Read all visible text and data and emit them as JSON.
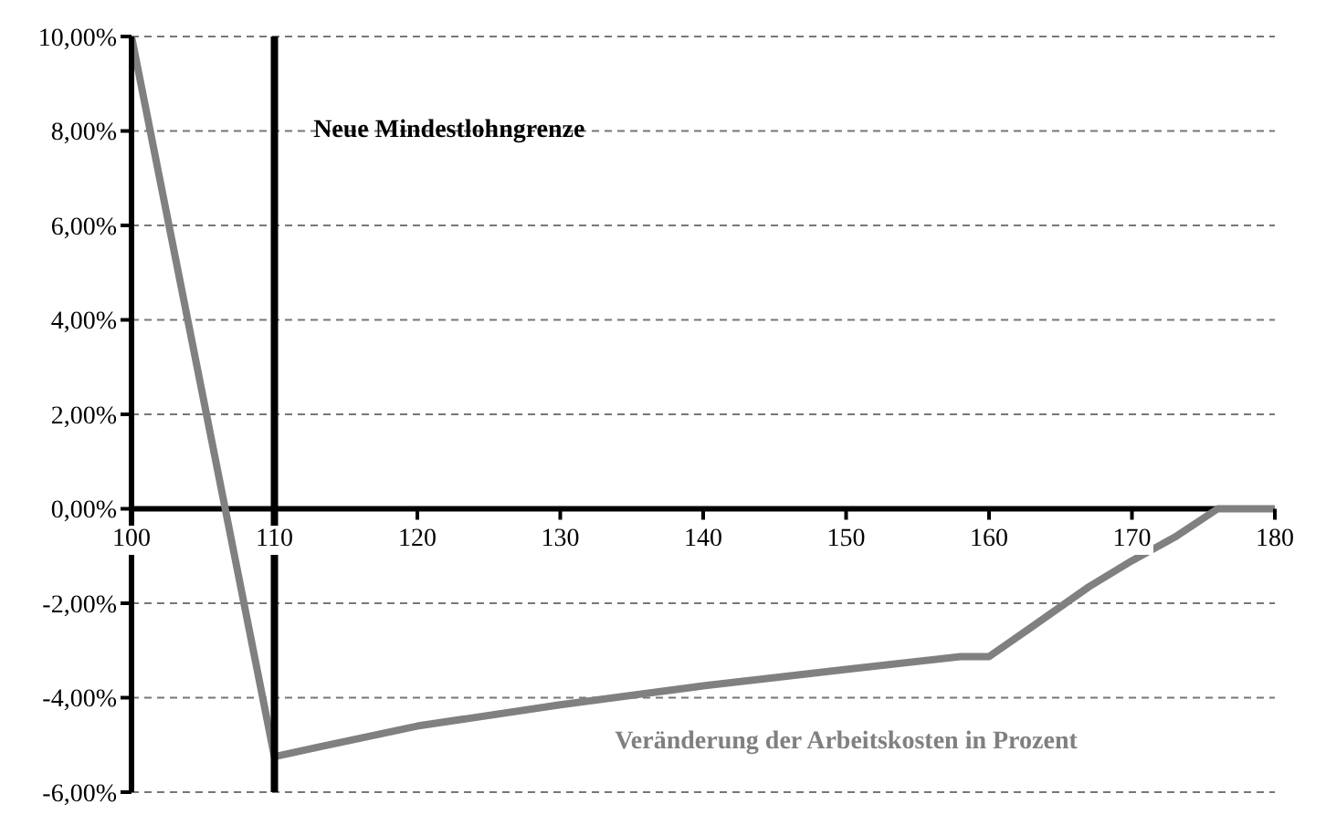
{
  "chart_data": {
    "type": "line",
    "x": [
      100,
      110,
      113,
      120,
      130,
      140,
      150,
      158,
      160,
      163,
      167,
      170,
      173,
      176,
      180
    ],
    "series": [
      {
        "name": "Veränderung der Arbeitskosten in Prozent",
        "color": "#808080",
        "values": [
          10,
          -5.25,
          -5.05,
          -4.6,
          -4.15,
          -3.75,
          -3.4,
          -3.13,
          -3.13,
          -2.5,
          -1.65,
          -1.1,
          -0.6,
          0,
          0
        ]
      }
    ],
    "xlim": [
      100,
      180
    ],
    "xticks": [
      100,
      110,
      120,
      130,
      140,
      150,
      160,
      170,
      180
    ],
    "ylim": [
      -6,
      10
    ],
    "yticks": [
      {
        "value": -6,
        "label": "-6,00%"
      },
      {
        "value": -4,
        "label": "-4,00%"
      },
      {
        "value": -2,
        "label": "-2,00%"
      },
      {
        "value": 0,
        "label": "0,00%"
      },
      {
        "value": 2,
        "label": "2,00%"
      },
      {
        "value": 4,
        "label": "4,00%"
      },
      {
        "value": 6,
        "label": "6,00%"
      },
      {
        "value": 8,
        "label": "8,00%"
      },
      {
        "value": 10,
        "label": "10,00%"
      }
    ],
    "grid": "y",
    "marker": "none",
    "line_style": "solid",
    "ref_lines": [
      {
        "axis": "x",
        "value": 110,
        "label": "Neue Mindestlohngrenze",
        "color": "#000000"
      }
    ]
  }
}
